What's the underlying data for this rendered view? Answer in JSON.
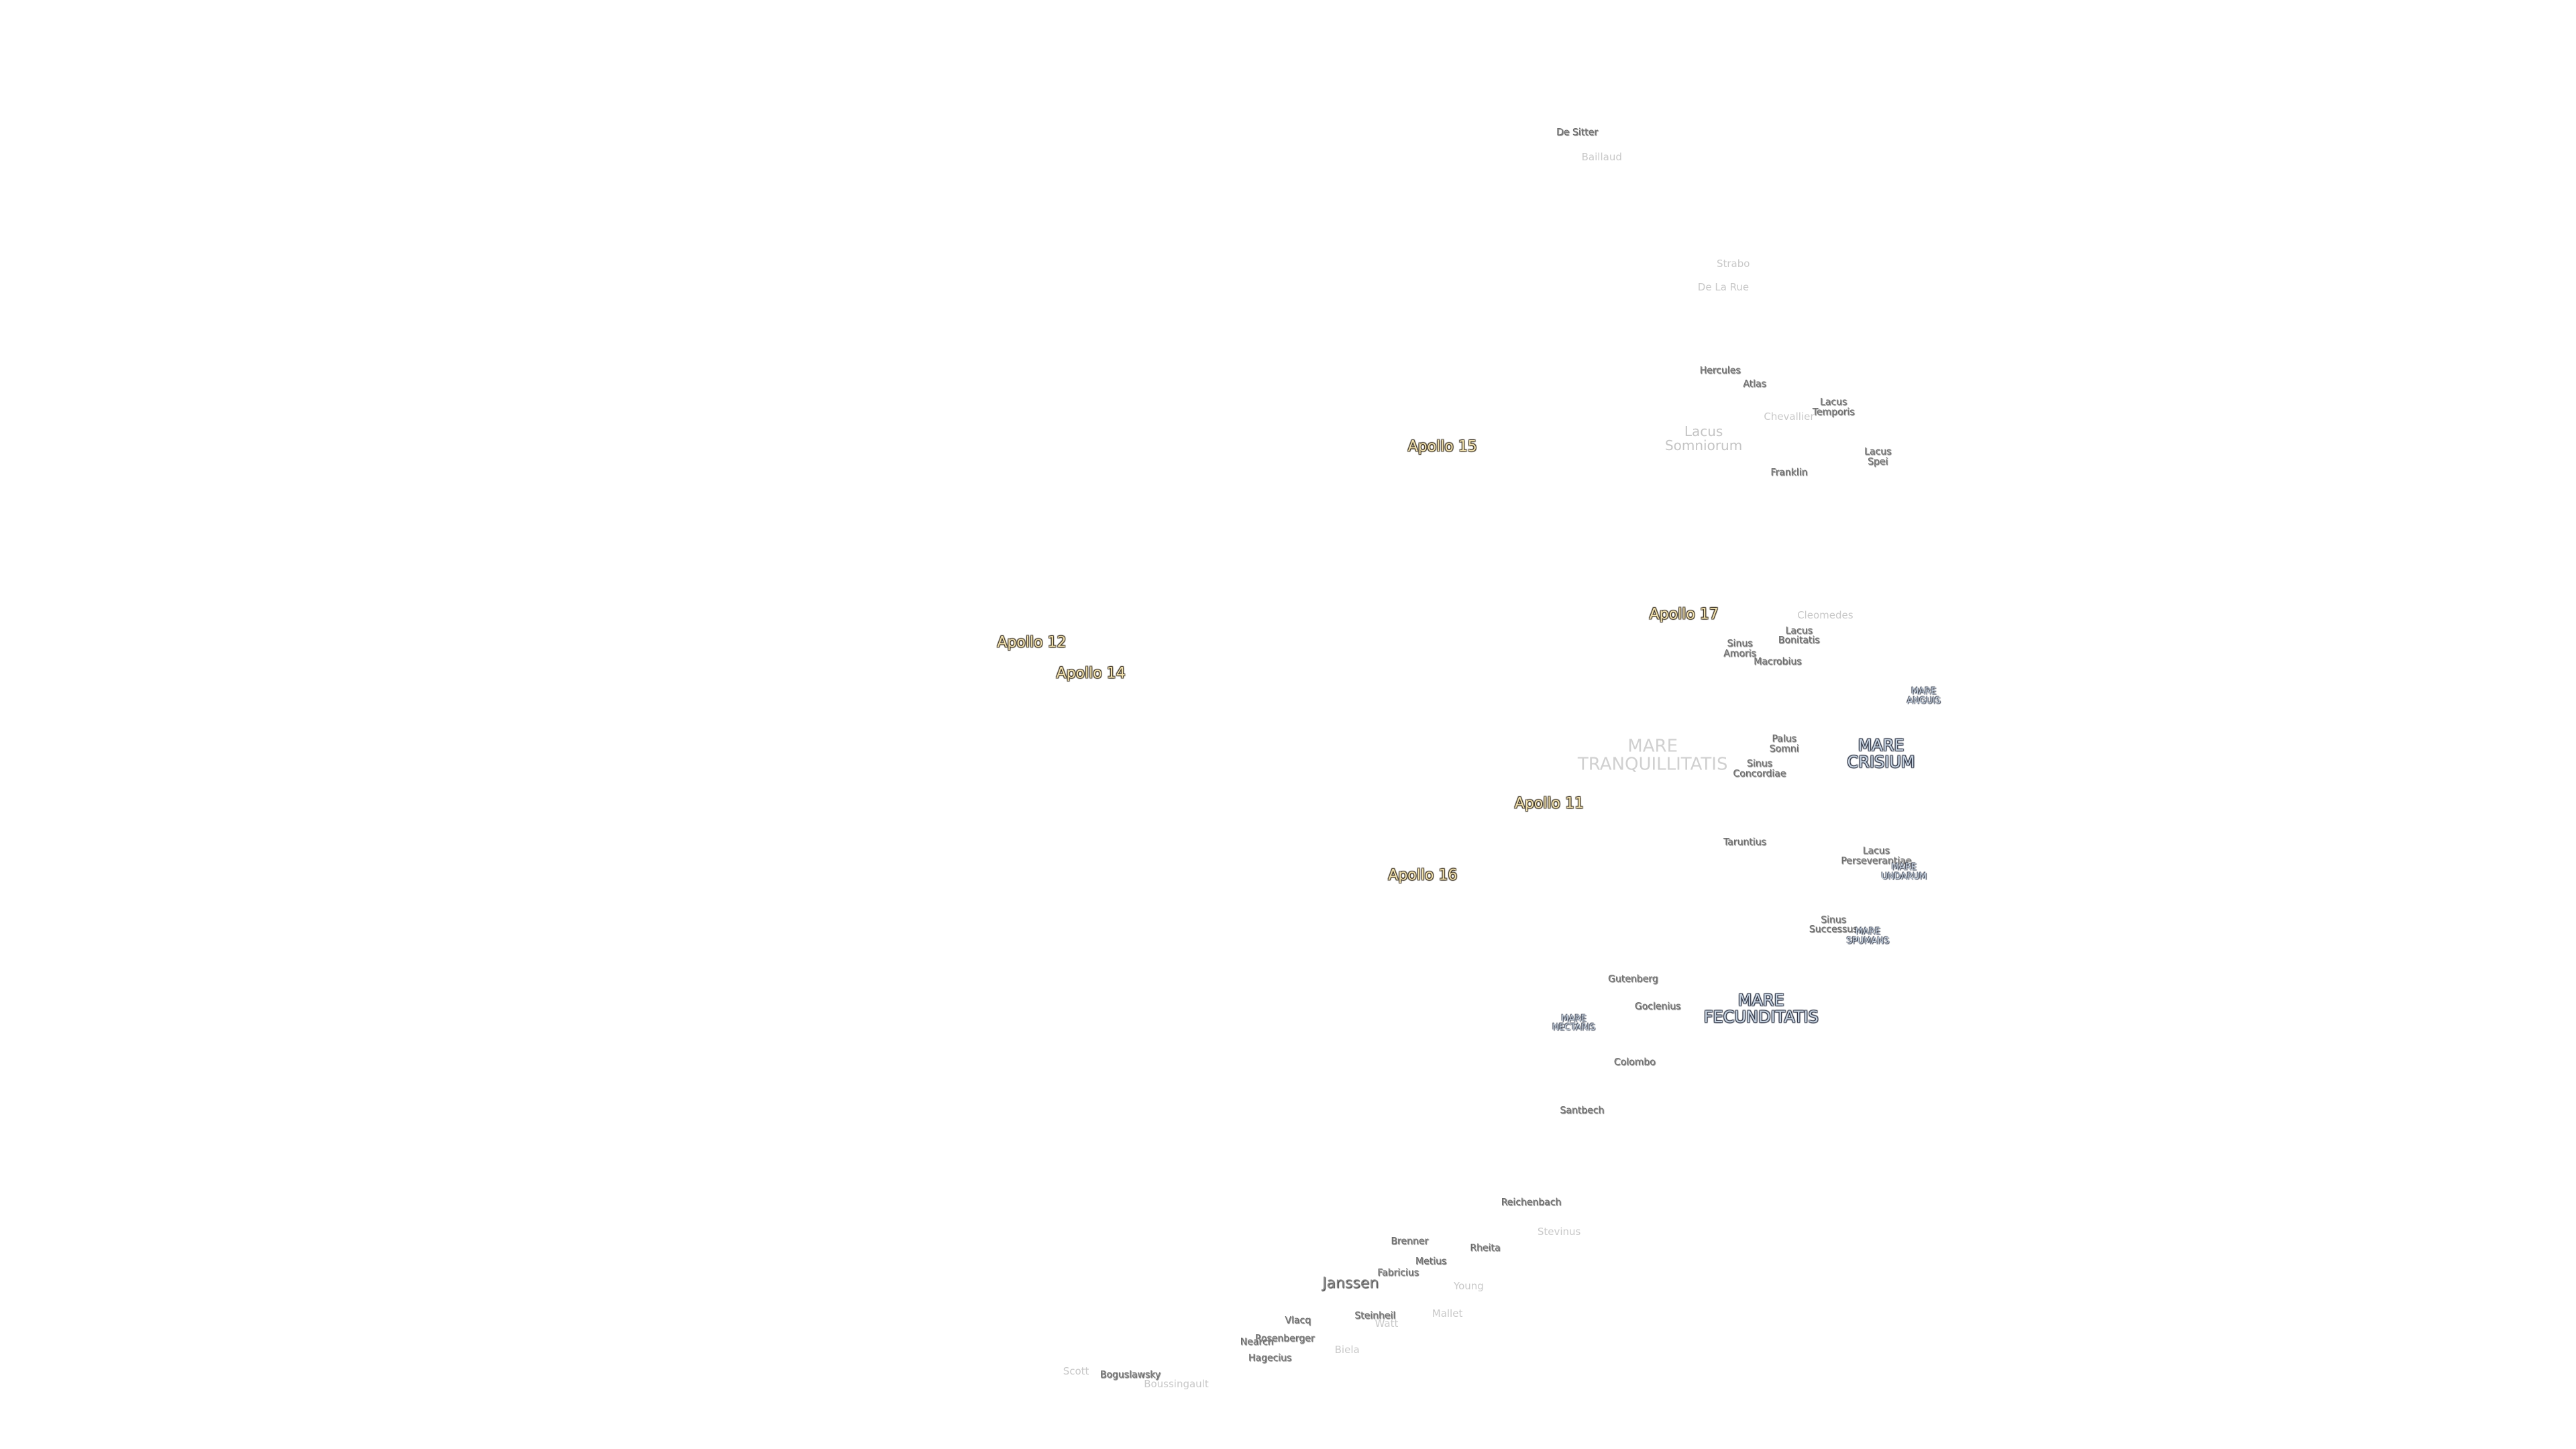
{
  "labels": [
    "De Sitter",
    "Baillaud",
    "Strabo",
    "De La Rue",
    "Hercules",
    "Atlas",
    "Lacus Temporis",
    "Chevallier",
    "Lacus Somniorum",
    "Apollo 15",
    "Lacus Spei",
    "Franklin",
    "Apollo 17",
    "Cleomedes",
    "Lacus Bonitatis",
    "Sinus Amoris",
    "Macrobius",
    "Apollo 12",
    "Apollo 14",
    "MARE ANGUIS",
    "MARE TRANQUILLITATIS",
    "Palus Somni",
    "MARE CRISIUM",
    "Sinus Concordiae",
    "Apollo 11",
    "Taruntius",
    "Lacus Perseverantiae",
    "MARE UNDARUM",
    "Apollo 16",
    "Sinus Successus",
    "MARE SPUMANS",
    "Gutenberg",
    "Goclenius",
    "MARE FECUNDITATIS",
    "MARE NECTARIS",
    "Colombo",
    "Santbech",
    "Reichenbach",
    "Stevinus",
    "Brenner",
    "Rheita",
    "Metius",
    "Fabricius",
    "Janssen",
    "Young",
    "Vlacq",
    "Steinheil",
    "Watt",
    "Mallet",
    "Rosenberger",
    "Nearch",
    "Hagecius",
    "Biela",
    "Scott",
    "Boguslawsky",
    "Boussingault"
  ]
}
